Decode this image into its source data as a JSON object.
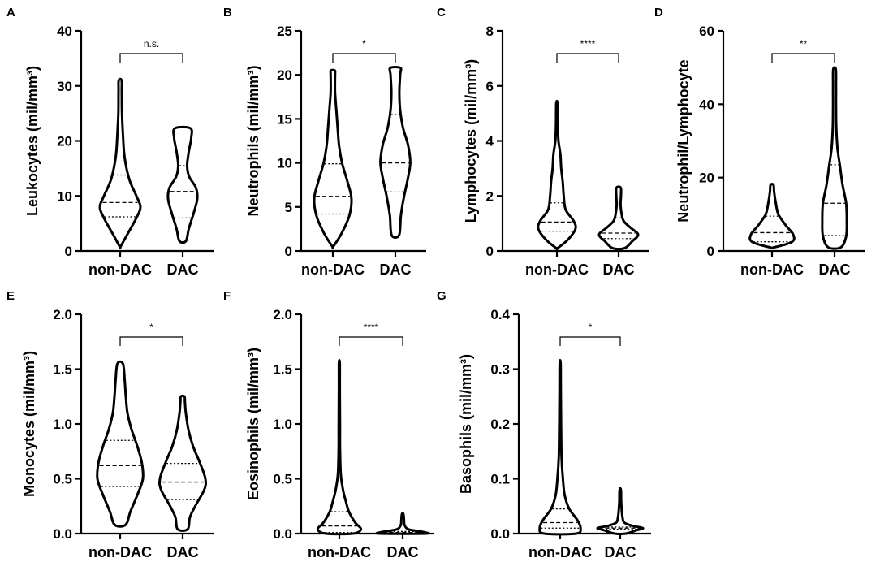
{
  "chart_data": [
    {
      "panel": "A",
      "type": "violin",
      "ylabel": "Leukocytes (mil/mm³)",
      "ylim": [
        0,
        40
      ],
      "yticks": [
        "0",
        "10",
        "20",
        "30",
        "40"
      ],
      "yticks_values": [
        0,
        10,
        20,
        30,
        40
      ],
      "categories": [
        "non-DAC",
        "DAC"
      ],
      "significance": "n.s.",
      "groups": [
        {
          "name": "non-DAC",
          "min": 0.8,
          "max": 31,
          "q1": 6.2,
          "median": 8.8,
          "q3": 13.8,
          "profile": [
            [
              0.8,
              0.02
            ],
            [
              3,
              0.35
            ],
            [
              6,
              0.8
            ],
            [
              8,
              1.0
            ],
            [
              10,
              0.8
            ],
            [
              13,
              0.45
            ],
            [
              17,
              0.22
            ],
            [
              21,
              0.14
            ],
            [
              25,
              0.09
            ],
            [
              29,
              0.08
            ],
            [
              31,
              0.07
            ]
          ]
        },
        {
          "name": "DAC",
          "min": 1.8,
          "max": 22.3,
          "q1": 6.0,
          "median": 10.8,
          "q3": 15.5,
          "profile": [
            [
              1.8,
              0.16
            ],
            [
              4,
              0.3
            ],
            [
              7,
              0.55
            ],
            [
              9.5,
              0.72
            ],
            [
              11.5,
              0.65
            ],
            [
              13.5,
              0.32
            ],
            [
              15.5,
              0.22
            ],
            [
              18,
              0.3
            ],
            [
              20.5,
              0.42
            ],
            [
              22.3,
              0.38
            ]
          ]
        }
      ]
    },
    {
      "panel": "B",
      "type": "violin",
      "ylabel": "Neutrophils (mil/mm³)",
      "ylim": [
        0,
        25
      ],
      "yticks": [
        "0",
        "5",
        "10",
        "15",
        "20",
        "25"
      ],
      "yticks_values": [
        0,
        5,
        10,
        15,
        20,
        25
      ],
      "categories": [
        "non-DAC",
        "DAC"
      ],
      "significance": "*",
      "groups": [
        {
          "name": "non-DAC",
          "min": 0.5,
          "max": 20.5,
          "q1": 4.2,
          "median": 6.2,
          "q3": 9.9,
          "profile": [
            [
              0.5,
              0.02
            ],
            [
              2,
              0.4
            ],
            [
              4,
              0.75
            ],
            [
              6,
              0.85
            ],
            [
              8,
              0.65
            ],
            [
              10,
              0.42
            ],
            [
              12,
              0.28
            ],
            [
              14,
              0.22
            ],
            [
              16,
              0.16
            ],
            [
              18,
              0.1
            ],
            [
              20,
              0.1
            ],
            [
              20.5,
              0.09
            ]
          ]
        },
        {
          "name": "DAC",
          "min": 1.8,
          "max": 20.8,
          "q1": 6.7,
          "median": 10.0,
          "q3": 15.5,
          "profile": [
            [
              1.8,
              0.17
            ],
            [
              4,
              0.25
            ],
            [
              6,
              0.38
            ],
            [
              8,
              0.55
            ],
            [
              10,
              0.68
            ],
            [
              12,
              0.58
            ],
            [
              14,
              0.35
            ],
            [
              16,
              0.22
            ],
            [
              18,
              0.18
            ],
            [
              20,
              0.22
            ],
            [
              20.8,
              0.23
            ]
          ]
        }
      ]
    },
    {
      "panel": "C",
      "type": "violin",
      "ylabel": "Lymphocytes (mil/mm³)",
      "ylim": [
        0,
        8
      ],
      "yticks": [
        "0",
        "2",
        "4",
        "6",
        "8"
      ],
      "yticks_values": [
        0,
        2,
        4,
        6,
        8
      ],
      "categories": [
        "non-DAC",
        "DAC"
      ],
      "significance": "****",
      "groups": [
        {
          "name": "non-DAC",
          "min": 0.1,
          "max": 5.4,
          "q1": 0.72,
          "median": 1.05,
          "q3": 1.75,
          "profile": [
            [
              0.1,
              0.03
            ],
            [
              0.4,
              0.55
            ],
            [
              0.8,
              0.95
            ],
            [
              1.1,
              0.85
            ],
            [
              1.5,
              0.45
            ],
            [
              2.0,
              0.35
            ],
            [
              2.5,
              0.3
            ],
            [
              3.0,
              0.22
            ],
            [
              3.5,
              0.18
            ],
            [
              4.0,
              0.08
            ],
            [
              4.5,
              0.05
            ],
            [
              5.0,
              0.04
            ],
            [
              5.4,
              0.03
            ]
          ]
        },
        {
          "name": "DAC",
          "min": 0.1,
          "max": 2.3,
          "q1": 0.45,
          "median": 0.65,
          "q3": 1.2,
          "profile": [
            [
              0.1,
              0.3
            ],
            [
              0.35,
              0.7
            ],
            [
              0.6,
              1.0
            ],
            [
              0.85,
              0.6
            ],
            [
              1.1,
              0.25
            ],
            [
              1.4,
              0.14
            ],
            [
              1.7,
              0.1
            ],
            [
              2.0,
              0.12
            ],
            [
              2.3,
              0.11
            ]
          ]
        }
      ]
    },
    {
      "panel": "D",
      "type": "violin",
      "ylabel": "Neutrophil/Lymphocyte",
      "ylim": [
        0,
        60
      ],
      "yticks": [
        "0",
        "20",
        "40",
        "60"
      ],
      "yticks_values": [
        0,
        20,
        40,
        60
      ],
      "categories": [
        "non-DAC",
        "DAC"
      ],
      "significance": "**",
      "groups": [
        {
          "name": "non-DAC",
          "min": 1.0,
          "max": 18,
          "q1": 2.5,
          "median": 5.0,
          "q3": 9.5,
          "profile": [
            [
              1,
              0.1
            ],
            [
              2.5,
              0.95
            ],
            [
              4.5,
              1.0
            ],
            [
              7,
              0.65
            ],
            [
              10,
              0.3
            ],
            [
              13,
              0.18
            ],
            [
              16,
              0.1
            ],
            [
              18,
              0.07
            ]
          ]
        },
        {
          "name": "DAC",
          "min": 1.0,
          "max": 49.5,
          "q1": 4.2,
          "median": 13.0,
          "q3": 23.5,
          "profile": [
            [
              1,
              0.3
            ],
            [
              4,
              0.55
            ],
            [
              8,
              0.58
            ],
            [
              13,
              0.55
            ],
            [
              18,
              0.38
            ],
            [
              23,
              0.26
            ],
            [
              28,
              0.14
            ],
            [
              34,
              0.08
            ],
            [
              40,
              0.07
            ],
            [
              45,
              0.07
            ],
            [
              49.5,
              0.06
            ]
          ]
        }
      ]
    },
    {
      "panel": "E",
      "type": "violin",
      "ylabel": "Monocytes (mil/mm³)",
      "ylim": [
        0,
        2.0
      ],
      "yticks": [
        "0.0",
        "0.5",
        "1.0",
        "1.5",
        "2.0"
      ],
      "yticks_values": [
        0,
        0.5,
        1.0,
        1.5,
        2.0
      ],
      "categories": [
        "non-DAC",
        "DAC"
      ],
      "significance": "*",
      "groups": [
        {
          "name": "non-DAC",
          "min": 0.08,
          "max": 1.55,
          "q1": 0.43,
          "median": 0.62,
          "q3": 0.85,
          "profile": [
            [
              0.08,
              0.24
            ],
            [
              0.2,
              0.45
            ],
            [
              0.35,
              0.75
            ],
            [
              0.5,
              1.0
            ],
            [
              0.65,
              0.95
            ],
            [
              0.8,
              0.75
            ],
            [
              0.95,
              0.5
            ],
            [
              1.1,
              0.32
            ],
            [
              1.25,
              0.25
            ],
            [
              1.4,
              0.2
            ],
            [
              1.55,
              0.12
            ]
          ]
        },
        {
          "name": "DAC",
          "min": 0.04,
          "max": 1.25,
          "q1": 0.31,
          "median": 0.47,
          "q3": 0.64,
          "profile": [
            [
              0.04,
              0.22
            ],
            [
              0.15,
              0.32
            ],
            [
              0.25,
              0.55
            ],
            [
              0.4,
              0.95
            ],
            [
              0.5,
              1.0
            ],
            [
              0.65,
              0.75
            ],
            [
              0.8,
              0.45
            ],
            [
              0.95,
              0.25
            ],
            [
              1.1,
              0.14
            ],
            [
              1.2,
              0.1
            ],
            [
              1.25,
              0.08
            ]
          ]
        }
      ]
    },
    {
      "panel": "F",
      "type": "violin",
      "ylabel": "Eosinophils (mil/mm³)",
      "ylim": [
        0,
        2.0
      ],
      "yticks": [
        "0.0",
        "0.5",
        "1.0",
        "1.5",
        "2.0"
      ],
      "yticks_values": [
        0,
        0.5,
        1.0,
        1.5,
        2.0
      ],
      "categories": [
        "non-DAC",
        "DAC"
      ],
      "significance": "****",
      "groups": [
        {
          "name": "non-DAC",
          "min": 0.0,
          "max": 1.55,
          "q1": 0.01,
          "median": 0.07,
          "q3": 0.2,
          "profile": [
            [
              0,
              0.6
            ],
            [
              0.04,
              0.95
            ],
            [
              0.1,
              0.7
            ],
            [
              0.2,
              0.42
            ],
            [
              0.3,
              0.28
            ],
            [
              0.4,
              0.16
            ],
            [
              0.55,
              0.06
            ],
            [
              0.8,
              0.03
            ],
            [
              1.0,
              0.03
            ],
            [
              1.3,
              0.02
            ],
            [
              1.55,
              0.02
            ]
          ]
        },
        {
          "name": "DAC",
          "min": 0.0,
          "max": 0.18,
          "q1": 0.005,
          "median": 0.01,
          "q3": 0.02,
          "profile": [
            [
              0,
              1.0
            ],
            [
              0.015,
              0.9
            ],
            [
              0.04,
              0.25
            ],
            [
              0.08,
              0.08
            ],
            [
              0.12,
              0.06
            ],
            [
              0.15,
              0.05
            ],
            [
              0.18,
              0.03
            ]
          ]
        }
      ]
    },
    {
      "panel": "G",
      "type": "violin",
      "ylabel": "Basophils (mil/mm³)",
      "ylim": [
        0,
        0.4
      ],
      "yticks": [
        "0.0",
        "0.1",
        "0.2",
        "0.3",
        "0.4"
      ],
      "yticks_values": [
        0,
        0.1,
        0.2,
        0.3,
        0.4
      ],
      "categories": [
        "non-DAC",
        "DAC"
      ],
      "significance": "*",
      "groups": [
        {
          "name": "non-DAC",
          "min": 0.0,
          "max": 0.31,
          "q1": 0.01,
          "median": 0.02,
          "q3": 0.045,
          "profile": [
            [
              0,
              0.7
            ],
            [
              0.01,
              0.9
            ],
            [
              0.025,
              0.75
            ],
            [
              0.045,
              0.4
            ],
            [
              0.07,
              0.2
            ],
            [
              0.1,
              0.12
            ],
            [
              0.14,
              0.06
            ],
            [
              0.2,
              0.04
            ],
            [
              0.26,
              0.03
            ],
            [
              0.31,
              0.02
            ]
          ]
        },
        {
          "name": "DAC",
          "min": 0.0,
          "max": 0.08,
          "q1": 0.008,
          "median": 0.01,
          "q3": 0.012,
          "profile": [
            [
              0,
              0.25
            ],
            [
              0.006,
              0.7
            ],
            [
              0.01,
              1.0
            ],
            [
              0.014,
              0.55
            ],
            [
              0.02,
              0.18
            ],
            [
              0.03,
              0.1
            ],
            [
              0.045,
              0.06
            ],
            [
              0.06,
              0.04
            ],
            [
              0.08,
              0.03
            ]
          ]
        }
      ]
    }
  ]
}
